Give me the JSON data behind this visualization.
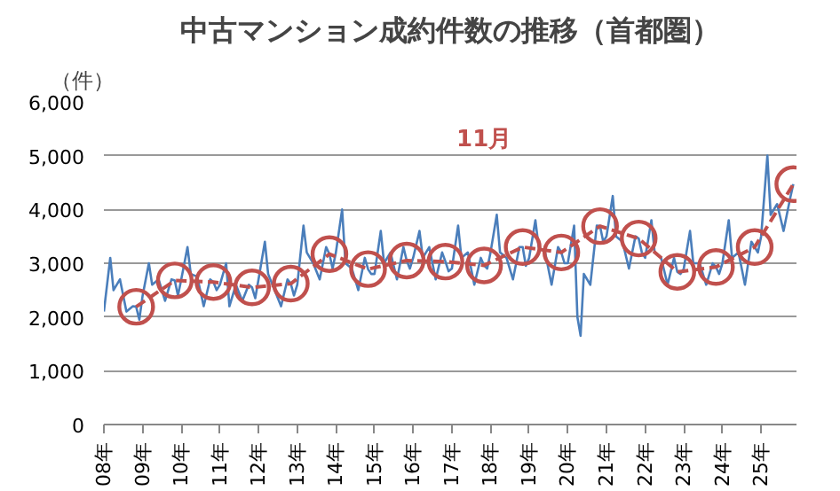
{
  "chart_data": {
    "type": "line",
    "title": "中古マンション成約件数の推移（首都圏）",
    "ylabel": "（件）",
    "xlim": [
      "2008-01",
      "2025-12"
    ],
    "xticks": [
      {
        "value": "2008-01",
        "label": "08年"
      },
      {
        "value": "2009-01",
        "label": "09年"
      },
      {
        "value": "2010-01",
        "label": "10年"
      },
      {
        "value": "2011-01",
        "label": "11年"
      },
      {
        "value": "2012-01",
        "label": "12年"
      },
      {
        "value": "2013-01",
        "label": "13年"
      },
      {
        "value": "2014-01",
        "label": "14年"
      },
      {
        "value": "2015-01",
        "label": "15年"
      },
      {
        "value": "2016-01",
        "label": "16年"
      },
      {
        "value": "2017-01",
        "label": "17年"
      },
      {
        "value": "2018-01",
        "label": "18年"
      },
      {
        "value": "2019-01",
        "label": "19年"
      },
      {
        "value": "2020-01",
        "label": "20年"
      },
      {
        "value": "2021-01",
        "label": "21年"
      },
      {
        "value": "2022-01",
        "label": "22年"
      },
      {
        "value": "2023-01",
        "label": "23年"
      },
      {
        "value": "2024-01",
        "label": "24年"
      },
      {
        "value": "2025-01",
        "label": "25年"
      }
    ],
    "ylim": [
      0,
      6000
    ],
    "yticks": [
      {
        "value": 0,
        "label": "0"
      },
      {
        "value": 1000,
        "label": "1,000"
      },
      {
        "value": 2000,
        "label": "2,000"
      },
      {
        "value": 3000,
        "label": "3,000"
      },
      {
        "value": 4000,
        "label": "4,000"
      },
      {
        "value": 5000,
        "label": "5,000"
      },
      {
        "value": 6000,
        "label": "6,000"
      }
    ],
    "grid": "y",
    "series": [
      {
        "color": "#4a7ebb",
        "marker": "none",
        "line_style": "solid",
        "x": [
          "2008-01",
          "2008-03",
          "2008-04",
          "2008-06",
          "2008-08",
          "2008-10",
          "2008-11",
          "2008-12",
          "2009-01",
          "2009-03",
          "2009-04",
          "2009-06",
          "2009-08",
          "2009-10",
          "2009-11",
          "2009-12",
          "2010-01",
          "2010-03",
          "2010-04",
          "2010-06",
          "2010-08",
          "2010-10",
          "2010-11",
          "2010-12",
          "2011-01",
          "2011-03",
          "2011-04",
          "2011-06",
          "2011-08",
          "2011-10",
          "2011-11",
          "2011-12",
          "2012-01",
          "2012-03",
          "2012-04",
          "2012-06",
          "2012-08",
          "2012-10",
          "2012-11",
          "2012-12",
          "2013-01",
          "2013-03",
          "2013-04",
          "2013-06",
          "2013-08",
          "2013-10",
          "2013-11",
          "2013-12",
          "2014-01",
          "2014-03",
          "2014-04",
          "2014-06",
          "2014-08",
          "2014-10",
          "2014-11",
          "2014-12",
          "2015-01",
          "2015-03",
          "2015-04",
          "2015-06",
          "2015-08",
          "2015-10",
          "2015-11",
          "2015-12",
          "2016-01",
          "2016-03",
          "2016-04",
          "2016-06",
          "2016-08",
          "2016-10",
          "2016-11",
          "2016-12",
          "2017-01",
          "2017-03",
          "2017-04",
          "2017-06",
          "2017-08",
          "2017-10",
          "2017-11",
          "2017-12",
          "2018-01",
          "2018-03",
          "2018-04",
          "2018-06",
          "2018-08",
          "2018-10",
          "2018-11",
          "2018-12",
          "2019-01",
          "2019-03",
          "2019-04",
          "2019-06",
          "2019-08",
          "2019-10",
          "2019-11",
          "2019-12",
          "2020-01",
          "2020-03",
          "2020-04",
          "2020-05",
          "2020-06",
          "2020-08",
          "2020-10",
          "2020-11",
          "2020-12",
          "2021-01",
          "2021-03",
          "2021-04",
          "2021-06",
          "2021-08",
          "2021-10",
          "2021-11",
          "2021-12",
          "2022-01",
          "2022-03",
          "2022-04",
          "2022-06",
          "2022-08",
          "2022-10",
          "2022-11",
          "2022-12",
          "2023-01",
          "2023-03",
          "2023-04",
          "2023-06",
          "2023-08",
          "2023-10",
          "2023-11",
          "2023-12",
          "2024-01",
          "2024-03",
          "2024-04",
          "2024-06",
          "2024-08",
          "2024-10",
          "2024-11",
          "2024-12",
          "2025-01",
          "2025-03",
          "2025-04",
          "2025-06",
          "2025-08",
          "2025-10",
          "2025-11"
        ],
        "values": [
          2100,
          3100,
          2500,
          2700,
          2100,
          2200,
          2190,
          1950,
          2400,
          3000,
          2600,
          2700,
          2300,
          2700,
          2680,
          2400,
          2700,
          3300,
          2800,
          2750,
          2200,
          2700,
          2650,
          2500,
          2600,
          3000,
          2200,
          2600,
          2300,
          2600,
          2550,
          2350,
          2700,
          3400,
          2800,
          2500,
          2200,
          2700,
          2620,
          2400,
          2600,
          3700,
          3200,
          3000,
          2700,
          3300,
          3170,
          2900,
          3200,
          4000,
          3000,
          2900,
          2500,
          3100,
          2890,
          2800,
          2800,
          3600,
          3000,
          3200,
          2700,
          3300,
          3050,
          2900,
          3100,
          3600,
          3100,
          3300,
          2700,
          3200,
          3030,
          2850,
          2900,
          3700,
          3100,
          3200,
          2600,
          3100,
          2960,
          2900,
          3200,
          3900,
          3200,
          3100,
          2700,
          3300,
          3300,
          2950,
          3100,
          3800,
          3300,
          3200,
          2600,
          3300,
          3200,
          3000,
          3000,
          3700,
          2000,
          1650,
          2800,
          2600,
          3700,
          3690,
          3400,
          3500,
          4250,
          3500,
          3400,
          2900,
          3500,
          3460,
          3200,
          3100,
          3800,
          3200,
          3100,
          2600,
          3100,
          2840,
          2800,
          2900,
          3600,
          3000,
          3000,
          2600,
          3000,
          2930,
          2800,
          3000,
          3800,
          3100,
          3200,
          2600,
          3400,
          3300,
          3200,
          3500,
          5000,
          3900,
          4100,
          3600,
          4200,
          4470
        ]
      },
      {
        "name": "11月",
        "color": "#c0504d",
        "marker": "circle",
        "line_style": "dashed",
        "x": [
          "2008-11",
          "2009-11",
          "2010-11",
          "2011-11",
          "2012-11",
          "2013-11",
          "2014-11",
          "2015-11",
          "2016-11",
          "2017-11",
          "2018-11",
          "2019-11",
          "2020-11",
          "2021-11",
          "2022-11",
          "2023-11",
          "2024-11",
          "2025-11"
        ],
        "values": [
          2190,
          2680,
          2650,
          2550,
          2620,
          3170,
          2890,
          3050,
          3030,
          2960,
          3300,
          3200,
          3690,
          3460,
          2840,
          2930,
          3300,
          4470
        ]
      }
    ]
  }
}
